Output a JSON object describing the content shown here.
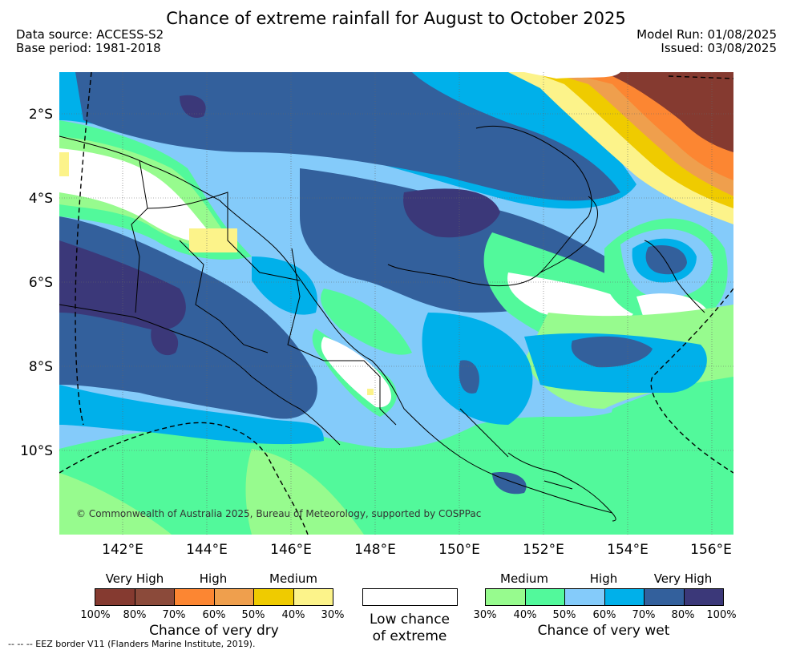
{
  "title": "Chance of extreme rainfall for August to October 2025",
  "meta": {
    "data_source": "Data source: ACCESS-S2",
    "base_period": "Base period: 1981-2018",
    "model_run": "Model Run: 01/08/2025",
    "issued": "Issued: 03/08/2025"
  },
  "map": {
    "lat_labels": [
      "2°S",
      "4°S",
      "6°S",
      "8°S",
      "10°S"
    ],
    "lon_labels": [
      "142°E",
      "144°E",
      "146°E",
      "148°E",
      "150°E",
      "152°E",
      "154°E",
      "156°E"
    ],
    "copyright": "© Commonwealth of Australia 2025, Bureau of Meteorology, supported by COSPPac"
  },
  "legend": {
    "dry": {
      "levels": [
        "Very High",
        "High",
        "Medium"
      ],
      "percents": [
        "100%",
        "80%",
        "70%",
        "60%",
        "50%",
        "40%",
        "30%"
      ],
      "colors": [
        "#853a30",
        "#8b4a3a",
        "#fc8632",
        "#ef9f4d",
        "#efcb00",
        "#fcf38a"
      ],
      "title": "Chance of very dry"
    },
    "low": {
      "title_line1": "Low chance",
      "title_line2": "of extreme",
      "color": "#ffffff"
    },
    "wet": {
      "levels": [
        "Medium",
        "High",
        "Very High"
      ],
      "percents": [
        "30%",
        "40%",
        "50%",
        "60%",
        "70%",
        "80%",
        "100%"
      ],
      "colors": [
        "#97fb8e",
        "#52f99b",
        "#84cbfa",
        "#00b0ea",
        "#33609c",
        "#3b3879"
      ],
      "title": "Chance of very wet"
    }
  },
  "footnote": "--  --  -- EEZ border V11 (Flanders Marine Institute, 2019)."
}
